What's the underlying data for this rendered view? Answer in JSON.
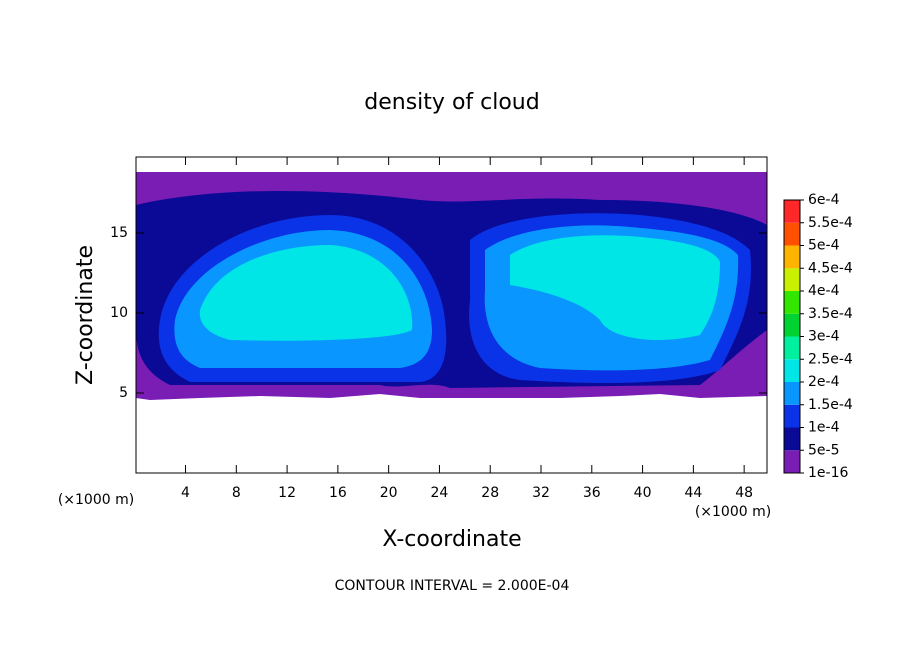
{
  "chart_data": {
    "type": "contour",
    "title": "density of cloud",
    "x_label": "X-coordinate",
    "y_label": "Z-coordinate",
    "x_unit": "(×1000 m)",
    "y_unit": "(×1000 m)",
    "footer": "CONTOUR INTERVAL = 2.000E-04",
    "xlim": [
      0.1,
      49.8
    ],
    "xticks": [
      4,
      8,
      12,
      16,
      20,
      24,
      28,
      32,
      36,
      40,
      44,
      48
    ],
    "ylim": [
      0,
      19.75
    ],
    "yticks": [
      5,
      10,
      15
    ],
    "colorbar": {
      "ticks": [
        1e-16,
        {
          "value": 5e-05,
          "label": "5e-5"
        },
        {
          "value": 0.0001,
          "label": "1e-4"
        },
        {
          "value": 0.00015,
          "label": "1.5e-4"
        },
        {
          "value": 0.0002,
          "label": "2e-4"
        },
        {
          "value": 0.00025,
          "label": "2.5e-4"
        },
        {
          "value": 0.0003,
          "label": "3e-4"
        },
        {
          "value": 0.00035,
          "label": "3.5e-4"
        },
        {
          "value": 0.0004,
          "label": "4e-4"
        },
        {
          "value": 0.00045,
          "label": "4.5e-4"
        },
        {
          "value": 0.0005,
          "label": "5e-4"
        },
        {
          "value": 0.00055,
          "label": "5.5e-4"
        },
        {
          "value": 0.0006,
          "label": "6e-4"
        }
      ],
      "colors": [
        "#7a1db4",
        "#0a0a96",
        "#0a32e6",
        "#0a96ff",
        "#00e6e6",
        "#00f0a0",
        "#00d232",
        "#32e600",
        "#c8f000",
        "#ffb400",
        "#ff5000",
        "#ff2828",
        "#ff8c8c"
      ]
    }
  }
}
